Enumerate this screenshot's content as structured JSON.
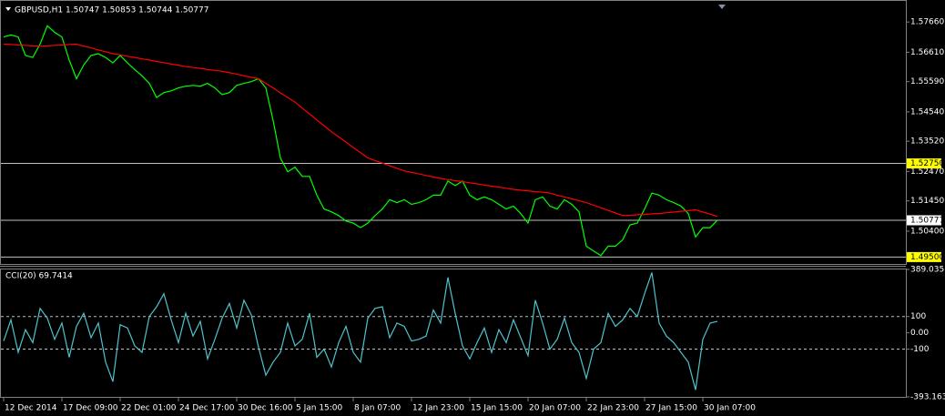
{
  "chart_data": [
    {
      "type": "line",
      "title": "GBPUSD,H1  1.50747 1.50853 1.50744 1.50777",
      "categories": [
        "12 Dec 2014",
        null,
        null,
        null,
        null,
        null,
        null,
        null,
        "17 Dec 09:00",
        null,
        null,
        null,
        null,
        null,
        null,
        null,
        "22 Dec 01:00",
        null,
        null,
        null,
        null,
        null,
        null,
        null,
        "24 Dec 17:00",
        null,
        null,
        null,
        null,
        null,
        null,
        null,
        "30 Dec 16:00",
        null,
        null,
        null,
        null,
        null,
        null,
        null,
        "5 Jan 15:00",
        null,
        null,
        null,
        null,
        null,
        null,
        null,
        "8 Jan 07:00",
        null,
        null,
        null,
        null,
        null,
        null,
        null,
        "12 Jan 23:00",
        null,
        null,
        null,
        null,
        null,
        null,
        null,
        "15 Jan 15:00",
        null,
        null,
        null,
        null,
        null,
        null,
        null,
        "20 Jan 07:00",
        null,
        null,
        null,
        null,
        null,
        null,
        null,
        "22 Jan 23:00",
        null,
        null,
        null,
        null,
        null,
        null,
        null,
        "27 Jan 15:00",
        null,
        null,
        null,
        null,
        null,
        null,
        null,
        "30 Jan 07:00",
        null,
        null
      ],
      "series": [
        {
          "color": "#00ff00",
          "values": [
            1.5714,
            1.5721,
            1.5714,
            1.565,
            1.5643,
            1.5689,
            1.5753,
            1.573,
            1.5714,
            1.5634,
            1.5569,
            1.5617,
            1.565,
            1.5656,
            1.5643,
            1.5624,
            1.565,
            1.5624,
            1.5601,
            1.5579,
            1.5553,
            1.5504,
            1.5521,
            1.5527,
            1.5537,
            1.5543,
            1.5546,
            1.5543,
            1.5553,
            1.5537,
            1.5514,
            1.5521,
            1.5546,
            1.5553,
            1.5559,
            1.5569,
            1.5537,
            1.5424,
            1.5294,
            1.5246,
            1.5262,
            1.523,
            1.523,
            1.5165,
            1.5117,
            1.5107,
            1.5094,
            1.5075,
            1.5068,
            1.5052,
            1.5068,
            1.5094,
            1.5117,
            1.5149,
            1.5139,
            1.5149,
            1.5133,
            1.5139,
            1.5149,
            1.5165,
            1.5165,
            1.5214,
            1.5198,
            1.5214,
            1.5165,
            1.5149,
            1.5159,
            1.5149,
            1.5133,
            1.5117,
            1.5127,
            1.5101,
            1.5068,
            1.5149,
            1.5159,
            1.5127,
            1.5117,
            1.5149,
            1.5133,
            1.5107,
            1.4988,
            1.4971,
            1.4955,
            1.4988,
            1.4988,
            1.501,
            1.5062,
            1.5068,
            1.5117,
            1.5172,
            1.5165,
            1.5149,
            1.5139,
            1.5127,
            1.5101,
            1.502,
            1.5052,
            1.5052,
            1.5078
          ]
        },
        {
          "color": "#ff0000",
          "values": [
            1.5689,
            1.5688,
            1.5686,
            1.5685,
            1.5683,
            1.5682,
            1.5683,
            1.5685,
            1.5686,
            1.5688,
            1.5689,
            1.5682,
            1.5676,
            1.5669,
            1.5663,
            1.5656,
            1.5652,
            1.5647,
            1.5643,
            1.5638,
            1.5634,
            1.5629,
            1.5625,
            1.562,
            1.5616,
            1.5611,
            1.5608,
            1.5605,
            1.5601,
            1.5598,
            1.5595,
            1.559,
            1.5585,
            1.5579,
            1.5574,
            1.5569,
            1.5553,
            1.5537,
            1.552,
            1.5504,
            1.5488,
            1.5467,
            1.5447,
            1.5426,
            1.5406,
            1.5385,
            1.5367,
            1.5349,
            1.533,
            1.5312,
            1.5294,
            1.5285,
            1.5276,
            1.5267,
            1.5258,
            1.5249,
            1.5244,
            1.5239,
            1.5233,
            1.5228,
            1.5223,
            1.5219,
            1.5215,
            1.5212,
            1.5208,
            1.5204,
            1.52,
            1.5196,
            1.5193,
            1.5189,
            1.5185,
            1.5182,
            1.518,
            1.5177,
            1.5175,
            1.5172,
            1.5165,
            1.5159,
            1.5152,
            1.5146,
            1.5139,
            1.513,
            1.5121,
            1.5112,
            1.5103,
            1.5094,
            1.5095,
            1.5097,
            1.5098,
            1.51,
            1.5101,
            1.5104,
            1.5106,
            1.5109,
            1.5111,
            1.5114,
            1.5106,
            1.5099,
            1.5091
          ]
        }
      ],
      "ylim": [
        1.4926,
        1.5836
      ],
      "yticks": [
        {
          "value": 1.5766,
          "label": "1.57660"
        },
        {
          "value": 1.5661,
          "label": "1.56610"
        },
        {
          "value": 1.5559,
          "label": "1.55590"
        },
        {
          "value": 1.5454,
          "label": "1.54540"
        },
        {
          "value": 1.5352,
          "label": "1.53520"
        },
        {
          "value": 1.5247,
          "label": "1.52470"
        },
        {
          "value": 1.5145,
          "label": "1.51450"
        },
        {
          "value": 1.504,
          "label": "1.50400"
        }
      ],
      "hlines": [
        {
          "value": 1.5275,
          "label": "1.52750",
          "color": "#ffff00"
        },
        {
          "value": 1.50777,
          "label": "1.50777",
          "color": "#ffffff"
        },
        {
          "value": 1.495,
          "label": "1.49500",
          "color": "#ffff00"
        }
      ]
    },
    {
      "type": "line",
      "title": "CCI(20) 69.7414",
      "series": [
        {
          "color": "#4fc3cc",
          "values": [
            -50,
            80,
            -120,
            20,
            -60,
            150,
            90,
            -40,
            60,
            -150,
            40,
            120,
            -30,
            60,
            -180,
            -300,
            50,
            30,
            -80,
            -120,
            100,
            160,
            240,
            80,
            -60,
            120,
            -20,
            70,
            -160,
            -40,
            90,
            180,
            30,
            200,
            110,
            -90,
            -260,
            -180,
            -120,
            60,
            -80,
            -40,
            120,
            -150,
            -100,
            -210,
            -60,
            40,
            -120,
            -180,
            90,
            150,
            160,
            -30,
            60,
            40,
            -50,
            -40,
            -20,
            140,
            60,
            340,
            120,
            -80,
            -160,
            -60,
            30,
            -120,
            20,
            -60,
            80,
            -30,
            -140,
            200,
            60,
            -100,
            -40,
            90,
            -60,
            -120,
            -280,
            -100,
            -60,
            120,
            40,
            80,
            150,
            100,
            240,
            370,
            60,
            -20,
            -60,
            -120,
            -180,
            -350,
            -40,
            60,
            69.7414
          ]
        }
      ],
      "ylim": [
        -393.163,
        389.035
      ],
      "yticks": [
        389.035,
        100,
        {
          "value": 0,
          "label": "0.00"
        },
        -100,
        -393.163
      ],
      "levels": [
        100,
        -100
      ]
    }
  ]
}
